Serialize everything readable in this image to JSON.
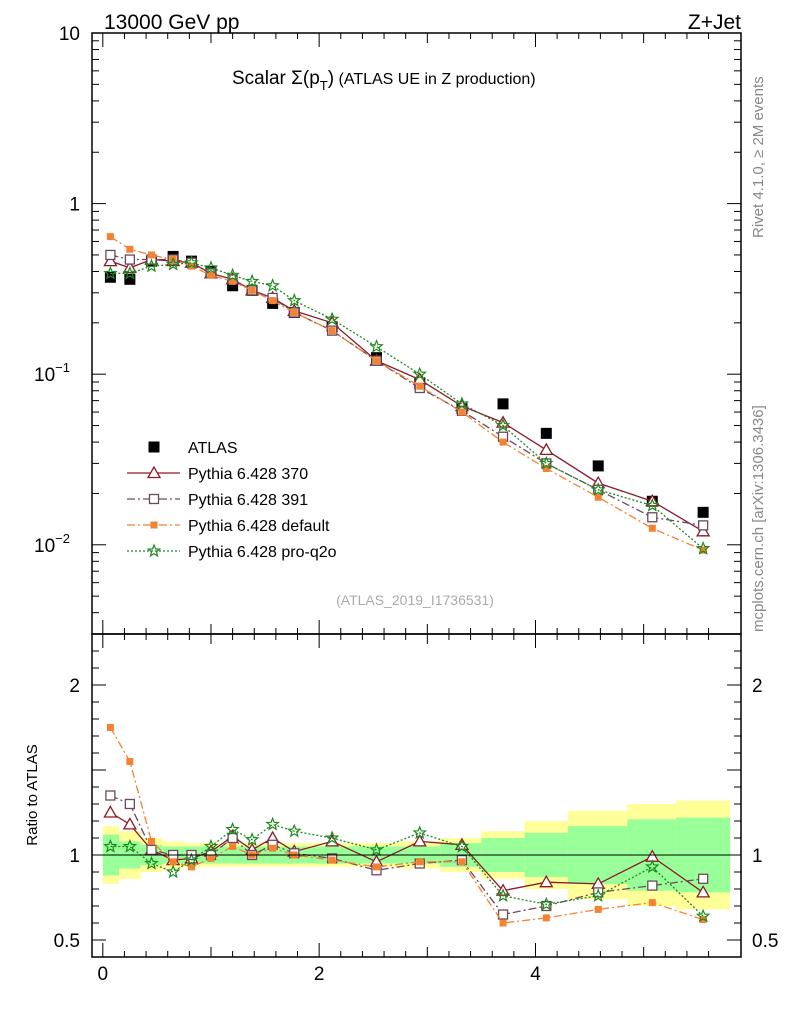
{
  "header": {
    "left": "13000 GeV pp",
    "right": "Z+Jet"
  },
  "side": {
    "rivet": "Rivet 4.1.0, ≥ 2M events",
    "mcplots": "mcplots.cern.ch [arXiv:1306.3436]"
  },
  "colors": {
    "atlas": "#000000",
    "p370": "#8b1a2b",
    "p391": "#6b4a5c",
    "pdefault": "#f58231",
    "pq2o": "#1e8a1e",
    "band_inner": "#99ff99",
    "band_outer": "#ffff99"
  },
  "chart_data": {
    "type": "scatter",
    "title": "Scalar Σ(p_T) (ATLAS UE in Z production)",
    "title_main": "Scalar ",
    "title_sym": "Σ(p",
    "title_sub": "T",
    "title_close": ")",
    "title_rest": " (ATLAS UE in Z production)",
    "analysis_label": "(ATLAS_2019_I1736531)",
    "main": {
      "yscale": "log",
      "ylim": [
        0.003,
        10
      ],
      "yticks": [
        {
          "v": 10,
          "base": "10",
          "exp": ""
        },
        {
          "v": 1,
          "base": "1",
          "exp": ""
        },
        {
          "v": 0.1,
          "base": "10",
          "exp": "−1"
        },
        {
          "v": 0.01,
          "base": "10",
          "exp": "−2"
        }
      ]
    },
    "ratio": {
      "ylabel": "Ratio to ATLAS",
      "ylim": [
        0.4,
        2.3
      ],
      "yticks": [
        {
          "v": 0.5,
          "label": "0.5"
        },
        {
          "v": 1,
          "label": "1"
        },
        {
          "v": 2,
          "label": "2"
        }
      ]
    },
    "xlim": [
      -0.1,
      5.9
    ],
    "xticks": [
      {
        "v": 0,
        "label": "0"
      },
      {
        "v": 2,
        "label": "2"
      },
      {
        "v": 4,
        "label": "4"
      }
    ],
    "x": [
      0.07,
      0.25,
      0.45,
      0.65,
      0.82,
      1.0,
      1.2,
      1.38,
      1.57,
      1.77,
      2.12,
      2.53,
      2.93,
      3.32,
      3.7,
      4.1,
      4.58,
      5.08,
      5.55
    ],
    "bins": [
      0,
      0.15,
      0.35,
      0.55,
      0.75,
      0.9,
      1.1,
      1.3,
      1.47,
      1.67,
      1.87,
      2.35,
      2.72,
      3.12,
      3.5,
      3.9,
      4.3,
      4.85,
      5.3,
      5.8
    ],
    "band": {
      "inner": [
        0.12,
        0.08,
        0.06,
        0.05,
        0.05,
        0.05,
        0.05,
        0.05,
        0.05,
        0.05,
        0.05,
        0.05,
        0.05,
        0.07,
        0.1,
        0.13,
        0.17,
        0.21,
        0.22
      ],
      "outer": [
        0.17,
        0.14,
        0.1,
        0.08,
        0.07,
        0.07,
        0.07,
        0.07,
        0.07,
        0.07,
        0.07,
        0.07,
        0.08,
        0.1,
        0.14,
        0.2,
        0.26,
        0.3,
        0.32
      ]
    },
    "series": [
      {
        "name": "ATLAS",
        "key": "atlas",
        "marker": "square_filled",
        "line": "none",
        "values": [
          0.37,
          0.36,
          0.46,
          0.49,
          0.46,
          0.4,
          0.33,
          0.31,
          0.26,
          0.23,
          0.19,
          0.125,
          0.088,
          0.063,
          0.067,
          0.045,
          0.029,
          0.018,
          0.0155
        ],
        "ratio": [
          1,
          1,
          1,
          1,
          1,
          1,
          1,
          1,
          1,
          1,
          1,
          1,
          1,
          1,
          1,
          1,
          1,
          1,
          1
        ]
      },
      {
        "name": "Pythia 6.428 370",
        "key": "p370",
        "marker": "triangle_open",
        "line": "solid",
        "values": [
          0.46,
          0.42,
          0.47,
          0.46,
          0.45,
          0.39,
          0.36,
          0.31,
          0.28,
          0.235,
          0.2,
          0.12,
          0.093,
          0.065,
          0.052,
          0.036,
          0.023,
          0.018,
          0.012
        ],
        "ratio": [
          1.25,
          1.18,
          1.03,
          0.97,
          0.98,
          1.02,
          1.11,
          1.03,
          1.1,
          1.02,
          1.08,
          0.96,
          1.08,
          1.06,
          0.79,
          0.84,
          0.83,
          0.99,
          0.78
        ]
      },
      {
        "name": "Pythia 6.428 391",
        "key": "p391",
        "marker": "square_open",
        "line": "dashdot",
        "values": [
          0.5,
          0.47,
          0.47,
          0.47,
          0.45,
          0.39,
          0.36,
          0.31,
          0.28,
          0.23,
          0.18,
          0.12,
          0.083,
          0.061,
          0.043,
          0.03,
          0.021,
          0.0145,
          0.013
        ],
        "ratio": [
          1.35,
          1.3,
          1.03,
          1.0,
          1.0,
          1.0,
          1.1,
          1.0,
          1.06,
          1.01,
          0.98,
          0.91,
          0.95,
          0.97,
          0.65,
          0.7,
          0.78,
          0.82,
          0.86
        ]
      },
      {
        "name": "Pythia 6.428 default",
        "key": "pdefault",
        "marker": "square_filled_small",
        "line": "dashdot",
        "values": [
          0.64,
          0.54,
          0.5,
          0.47,
          0.43,
          0.38,
          0.35,
          0.31,
          0.27,
          0.23,
          0.18,
          0.12,
          0.085,
          0.06,
          0.04,
          0.028,
          0.019,
          0.0125,
          0.0093
        ],
        "ratio": [
          1.75,
          1.55,
          1.08,
          0.96,
          0.93,
          0.98,
          1.05,
          1.0,
          1.04,
          1.0,
          0.97,
          0.93,
          0.96,
          0.96,
          0.6,
          0.63,
          0.68,
          0.72,
          0.62
        ]
      },
      {
        "name": "Pythia 6.428 pro-q2o",
        "key": "pq2o",
        "marker": "star_open",
        "line": "dotted",
        "values": [
          0.39,
          0.39,
          0.43,
          0.44,
          0.45,
          0.42,
          0.38,
          0.35,
          0.33,
          0.27,
          0.21,
          0.145,
          0.1,
          0.067,
          0.05,
          0.03,
          0.021,
          0.017,
          0.0095
        ],
        "ratio": [
          1.05,
          1.05,
          0.95,
          0.9,
          0.97,
          1.05,
          1.15,
          1.09,
          1.18,
          1.14,
          1.1,
          1.03,
          1.13,
          1.05,
          0.76,
          0.71,
          0.76,
          0.93,
          0.64
        ]
      }
    ],
    "legend_position": "bottom-left"
  }
}
